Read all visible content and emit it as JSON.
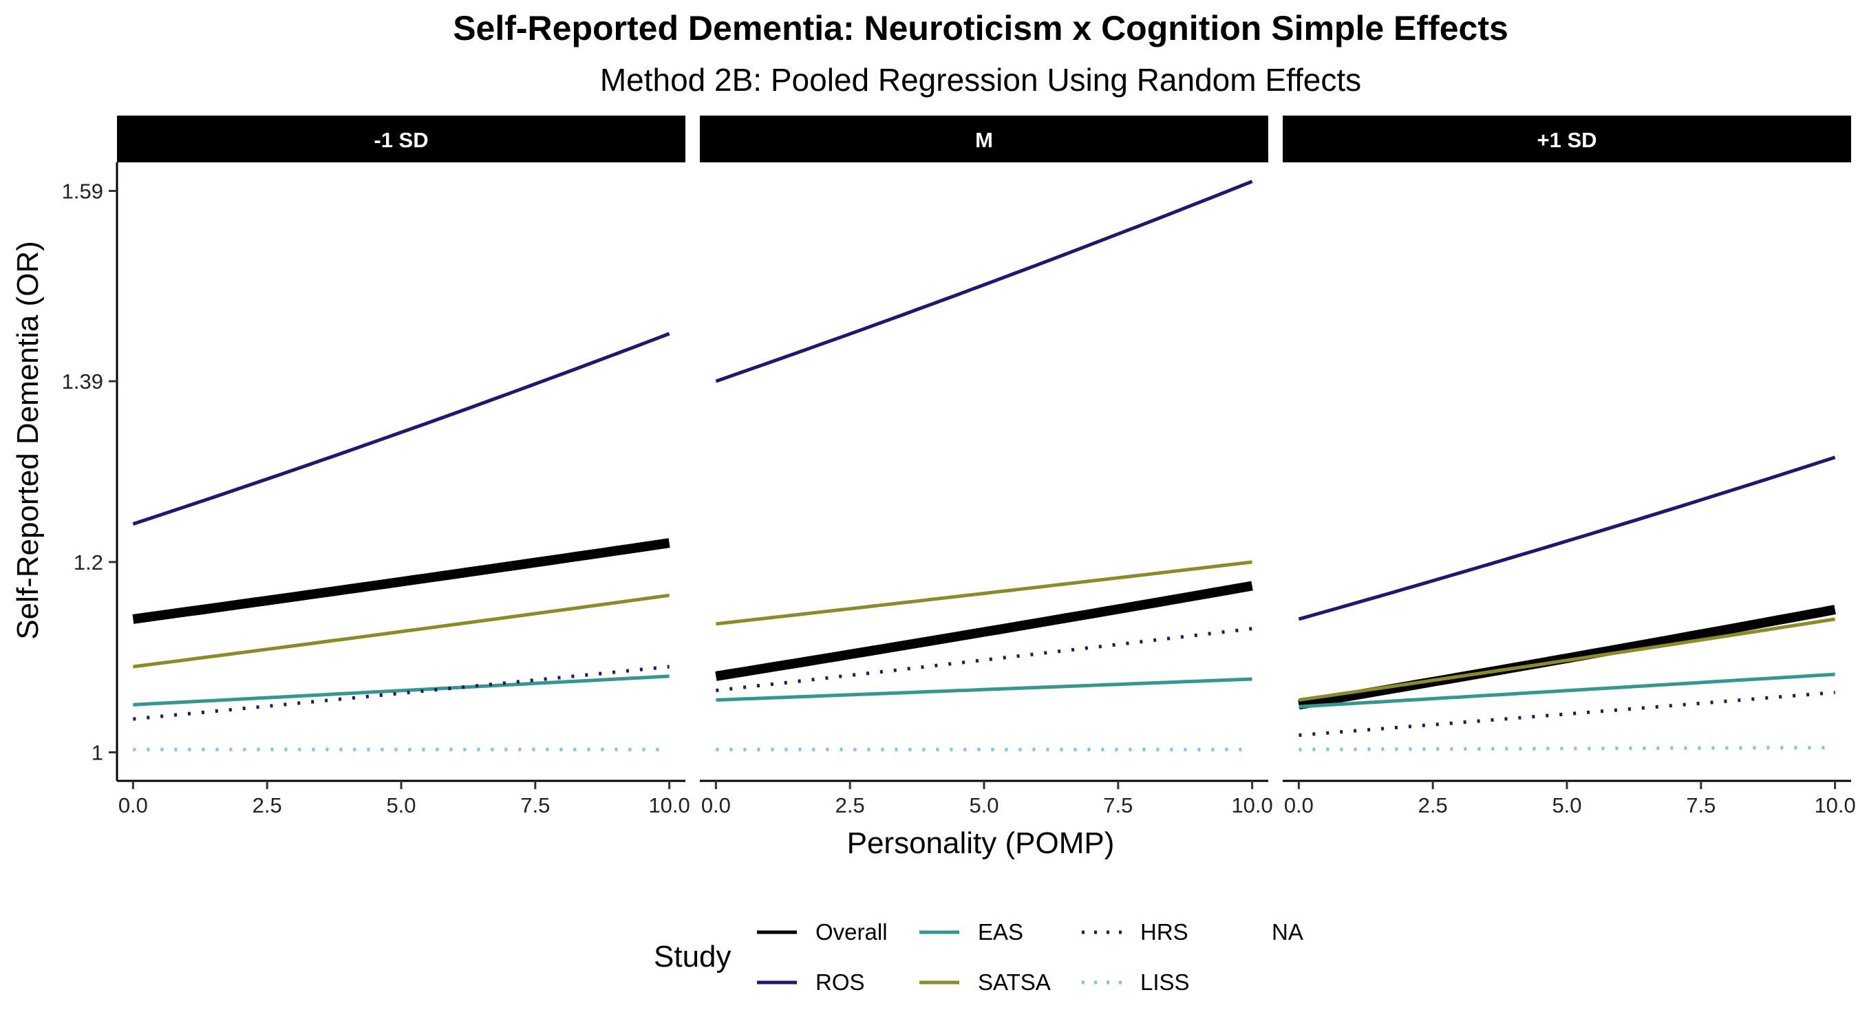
{
  "title": "Self-Reported Dementia: Neuroticism x Cognition Simple Effects",
  "subtitle": "Method 2B: Pooled Regression Using Random Effects",
  "chart_data": {
    "type": "line",
    "title": "Self-Reported Dementia: Neuroticism x Cognition Simple Effects",
    "subtitle": "Method 2B: Pooled Regression Using Random Effects",
    "xlabel": "Personality (POMP)",
    "ylabel": "Self-Reported Dementia (OR)",
    "xlim": [
      -0.3,
      10.3
    ],
    "ylim": [
      0.97,
      1.62
    ],
    "x_ticks": [
      0,
      2.5,
      5,
      7.5,
      10
    ],
    "x_tick_labels": [
      "0.0",
      "2.5",
      "5.0",
      "7.5",
      "10.0"
    ],
    "y_ticks": [
      1,
      1.2,
      1.39,
      1.59
    ],
    "y_tick_labels": [
      "1",
      "1.2",
      "1.39",
      "1.59"
    ],
    "grid": false,
    "legend": {
      "title": "Study",
      "position": "bottom",
      "items": [
        {
          "label": "Overall",
          "color": "#000000",
          "dash": "solid"
        },
        {
          "label": "ROS",
          "color": "#231570",
          "dash": "solid"
        },
        {
          "label": "EAS",
          "color": "#35978F",
          "dash": "solid"
        },
        {
          "label": "SATSA",
          "color": "#8B8B2A",
          "dash": "solid"
        },
        {
          "label": "HRS",
          "color": "#231570",
          "dash": "dotted"
        },
        {
          "label": "LISS",
          "color": "#7FC4E8",
          "dash": "dotted"
        },
        {
          "label": "NA",
          "color": "",
          "dash": "none"
        }
      ]
    },
    "panels": [
      {
        "label": "-1 SD",
        "series": [
          {
            "name": "ROS",
            "x": [
              0,
              10
            ],
            "y": [
              1.24,
              1.44
            ]
          },
          {
            "name": "Overall",
            "x": [
              0,
              10
            ],
            "y": [
              1.14,
              1.22
            ]
          },
          {
            "name": "SATSA",
            "x": [
              0,
              10
            ],
            "y": [
              1.09,
              1.165
            ]
          },
          {
            "name": "EAS",
            "x": [
              0,
              10
            ],
            "y": [
              1.05,
              1.08
            ]
          },
          {
            "name": "HRS",
            "x": [
              0,
              10
            ],
            "y": [
              1.035,
              1.09
            ]
          },
          {
            "name": "LISS",
            "x": [
              0,
              10
            ],
            "y": [
              1.003,
              1.003
            ]
          }
        ]
      },
      {
        "label": "M",
        "series": [
          {
            "name": "ROS",
            "x": [
              0,
              10
            ],
            "y": [
              1.39,
              1.6
            ]
          },
          {
            "name": "SATSA",
            "x": [
              0,
              10
            ],
            "y": [
              1.135,
              1.2
            ]
          },
          {
            "name": "Overall",
            "x": [
              0,
              10
            ],
            "y": [
              1.08,
              1.175
            ]
          },
          {
            "name": "HRS",
            "x": [
              0,
              10
            ],
            "y": [
              1.065,
              1.13
            ]
          },
          {
            "name": "EAS",
            "x": [
              0,
              10
            ],
            "y": [
              1.055,
              1.077
            ]
          },
          {
            "name": "LISS",
            "x": [
              0,
              10
            ],
            "y": [
              1.003,
              1.003
            ]
          }
        ]
      },
      {
        "label": "+1 SD",
        "series": [
          {
            "name": "ROS",
            "x": [
              0,
              10
            ],
            "y": [
              1.14,
              1.31
            ]
          },
          {
            "name": "Overall",
            "x": [
              0,
              10
            ],
            "y": [
              1.05,
              1.15
            ]
          },
          {
            "name": "SATSA",
            "x": [
              0,
              10
            ],
            "y": [
              1.055,
              1.14
            ]
          },
          {
            "name": "EAS",
            "x": [
              0,
              10
            ],
            "y": [
              1.048,
              1.082
            ]
          },
          {
            "name": "HRS",
            "x": [
              0,
              10
            ],
            "y": [
              1.018,
              1.063
            ]
          },
          {
            "name": "LISS",
            "x": [
              0,
              10
            ],
            "y": [
              1.003,
              1.005
            ]
          }
        ]
      }
    ]
  }
}
